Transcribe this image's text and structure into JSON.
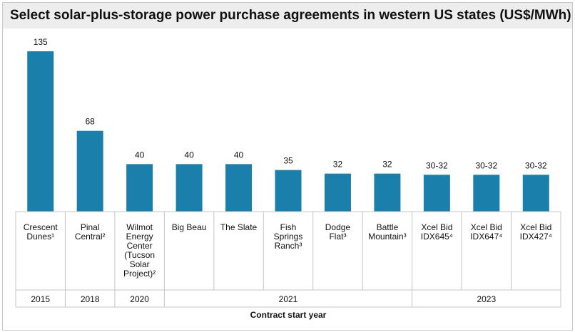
{
  "title": "Select solar-plus-storage power purchase agreements in western US states (US$/MWh)",
  "chart_data": {
    "type": "bar",
    "title": "Select solar-plus-storage power purchase agreements in western US states (US$/MWh)",
    "xlabel": "Contract start year",
    "ylabel": "",
    "ylim": [
      0,
      135
    ],
    "bar_color": "#1a7fab",
    "categories": [
      [
        "Crescent",
        "Dunes¹"
      ],
      [
        "Pinal",
        "Central²"
      ],
      [
        "Wilmot",
        "Energy",
        "Center",
        "(Tucson",
        "Solar",
        "Project)²"
      ],
      [
        "Big Beau"
      ],
      [
        "The Slate"
      ],
      [
        "Fish",
        "Springs",
        "Ranch³"
      ],
      [
        "Dodge",
        "Flat³"
      ],
      [
        "Battle",
        "Mountain³"
      ],
      [
        "Xcel Bid",
        "IDX645⁴"
      ],
      [
        "Xcel Bid",
        "IDX647⁴"
      ],
      [
        "Xcel Bid",
        "IDX427⁴"
      ]
    ],
    "values": [
      135,
      68,
      40,
      40,
      40,
      35,
      32,
      32,
      31,
      31,
      31
    ],
    "value_labels": [
      "135",
      "68",
      "40",
      "40",
      "40",
      "35",
      "32",
      "32",
      "30-32",
      "30-32",
      "30-32"
    ],
    "year_groups": [
      {
        "label": "2015",
        "count": 1
      },
      {
        "label": "2018",
        "count": 1
      },
      {
        "label": "2020",
        "count": 1
      },
      {
        "label": "2021",
        "count": 5
      },
      {
        "label": "2023",
        "count": 3
      }
    ]
  }
}
